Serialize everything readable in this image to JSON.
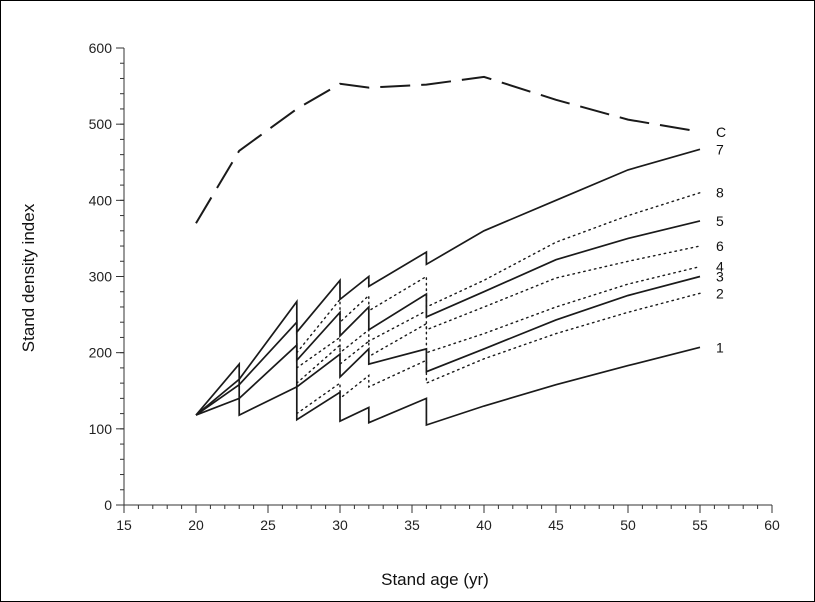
{
  "chart_data": {
    "type": "line",
    "xlabel": "Stand age (yr)",
    "ylabel": "Stand density index",
    "xlim": [
      15,
      60
    ],
    "ylim": [
      0,
      600
    ],
    "xticks": [
      15,
      20,
      25,
      30,
      35,
      40,
      45,
      50,
      55,
      60
    ],
    "yticks": [
      0,
      100,
      200,
      300,
      400,
      500,
      600
    ],
    "xminor_step": 1,
    "yminor_step": 20,
    "grid": false,
    "legend": "none",
    "series": [
      {
        "label": "C",
        "style": "dashed",
        "x": [
          20,
          23,
          27,
          30,
          32,
          36,
          40,
          45,
          50,
          55
        ],
        "y": [
          370,
          465,
          520,
          553,
          548,
          552,
          562,
          532,
          506,
          490
        ]
      },
      {
        "label": "7",
        "style": "solid",
        "x": [
          20,
          23,
          27,
          27,
          30,
          30,
          32,
          32,
          36,
          36,
          40,
          45,
          50,
          55
        ],
        "y": [
          118,
          165,
          267,
          227,
          295,
          270,
          300,
          287,
          332,
          316,
          360,
          400,
          440,
          467
        ]
      },
      {
        "label": "8",
        "style": "dotted",
        "x": [
          27,
          30,
          30,
          32,
          32,
          36,
          36,
          40,
          45,
          50,
          55
        ],
        "y": [
          200,
          270,
          240,
          275,
          255,
          300,
          260,
          295,
          345,
          380,
          410
        ]
      },
      {
        "label": "5",
        "style": "solid",
        "x": [
          20,
          23,
          27,
          27,
          30,
          30,
          32,
          32,
          36,
          36,
          40,
          45,
          50,
          55
        ],
        "y": [
          118,
          158,
          240,
          190,
          253,
          222,
          260,
          230,
          277,
          247,
          280,
          322,
          350,
          373
        ]
      },
      {
        "label": "6",
        "style": "dotted",
        "x": [
          27,
          30,
          30,
          32,
          32,
          36,
          36,
          40,
          45,
          50,
          55
        ],
        "y": [
          180,
          220,
          200,
          230,
          215,
          255,
          230,
          260,
          298,
          320,
          340
        ]
      },
      {
        "label": "4",
        "style": "dotted",
        "x": [
          27,
          30,
          30,
          32,
          32,
          36,
          36,
          40,
          45,
          50,
          55
        ],
        "y": [
          160,
          210,
          185,
          215,
          195,
          238,
          200,
          225,
          260,
          290,
          313
        ]
      },
      {
        "label": "3",
        "style": "solid",
        "x": [
          20,
          23,
          27,
          27,
          30,
          30,
          32,
          32,
          36,
          36,
          40,
          45,
          50,
          55
        ],
        "y": [
          118,
          140,
          210,
          155,
          198,
          168,
          205,
          185,
          205,
          175,
          205,
          243,
          275,
          300
        ]
      },
      {
        "label": "2",
        "style": "dotted",
        "x": [
          27,
          30,
          30,
          32,
          32,
          36,
          36,
          40,
          45,
          50,
          55
        ],
        "y": [
          120,
          160,
          140,
          170,
          155,
          190,
          160,
          192,
          225,
          253,
          278
        ]
      },
      {
        "label": "1",
        "style": "solid",
        "x": [
          20,
          23,
          23,
          27,
          27,
          30,
          30,
          32,
          32,
          36,
          36,
          40,
          45,
          50,
          55
        ],
        "y": [
          118,
          185,
          118,
          155,
          112,
          148,
          110,
          128,
          108,
          140,
          105,
          130,
          158,
          183,
          207
        ]
      }
    ]
  }
}
